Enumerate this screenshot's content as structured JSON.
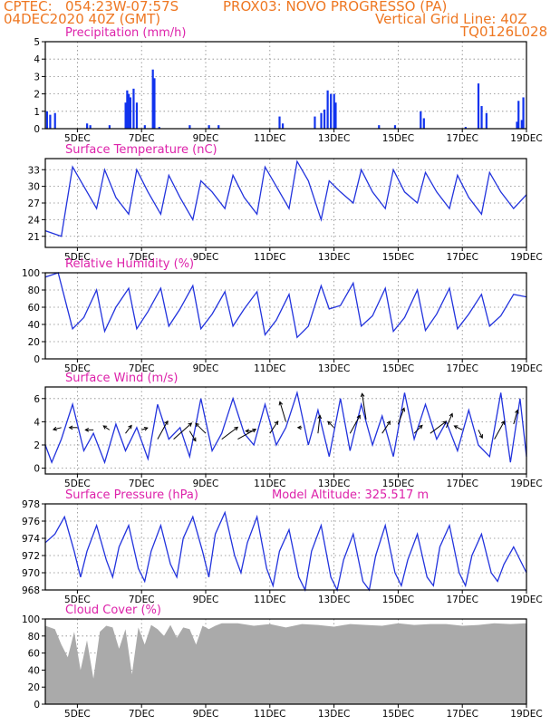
{
  "header": {
    "line1_left": "CPTEC:   054:23W-07:57S",
    "line1_right": "PROX03: NOVO PROGRESSO (PA)",
    "line2_left": "04DEC2020 40Z (GMT)",
    "line2_right": "Vertical Grid Line: 40Z",
    "line3_right": "TQ0126L028"
  },
  "colors": {
    "header": "#ee7722",
    "title": "#dd22aa",
    "line": "#2233dd",
    "bar": "#1133ee",
    "cloud": "#aaaaaa",
    "arrow": "#000000"
  },
  "model_altitude": "Model Altitude: 325.517 m",
  "x_ticks": [
    "5DEC",
    "7DEC",
    "9DEC",
    "11DEC",
    "13DEC",
    "15DEC",
    "17DEC",
    "19DEC"
  ],
  "chart_data": [
    {
      "type": "bar",
      "title": "Precipitation (mm/h)",
      "xlabel": "",
      "ylabel": "",
      "ylim": [
        0,
        5
      ],
      "yticks": [
        0,
        1,
        2,
        3,
        4,
        5
      ],
      "grid": true,
      "x": [
        4.05,
        4.15,
        4.3,
        5.3,
        5.4,
        6.0,
        6.5,
        6.55,
        6.6,
        6.65,
        6.75,
        6.85,
        7.1,
        7.35,
        7.4,
        7.55,
        8.5,
        9.1,
        9.4,
        11.3,
        11.4,
        12.4,
        12.6,
        12.7,
        12.8,
        12.9,
        13.0,
        13.05,
        14.4,
        14.9,
        15.7,
        15.8,
        17.1,
        17.5,
        17.6,
        17.75,
        18.7,
        18.75,
        18.85,
        18.9
      ],
      "values": [
        1.0,
        0.8,
        0.9,
        0.3,
        0.2,
        0.2,
        1.5,
        2.2,
        2.0,
        1.8,
        2.3,
        1.5,
        0.2,
        3.4,
        2.9,
        0.1,
        0.2,
        0.2,
        0.2,
        0.7,
        0.3,
        0.7,
        0.9,
        1.1,
        2.2,
        2.0,
        2.0,
        1.5,
        0.2,
        0.2,
        1.0,
        0.6,
        0.1,
        2.6,
        1.3,
        0.9,
        0.4,
        1.6,
        0.5,
        1.8
      ]
    },
    {
      "type": "line",
      "title": "Surface Temperature (nC)",
      "xlabel": "",
      "ylabel": "",
      "ylim": [
        19,
        35
      ],
      "yticks": [
        21,
        24,
        27,
        30,
        33
      ],
      "grid": true,
      "series": [
        {
          "x": [
            4.0,
            4.5,
            4.85,
            5.2,
            5.6,
            5.85,
            6.2,
            6.6,
            6.85,
            7.2,
            7.6,
            7.85,
            8.2,
            8.6,
            8.85,
            9.2,
            9.6,
            9.85,
            10.2,
            10.6,
            10.85,
            11.2,
            11.6,
            11.85,
            12.2,
            12.6,
            12.85,
            13.2,
            13.6,
            13.85,
            14.2,
            14.6,
            14.85,
            15.2,
            15.6,
            15.85,
            16.2,
            16.6,
            16.85,
            17.2,
            17.6,
            17.85,
            18.2,
            18.6,
            19.0
          ],
          "y": [
            22,
            21,
            33.5,
            30,
            26,
            33,
            28,
            25,
            33,
            29,
            25,
            32,
            28,
            24,
            31,
            29,
            26,
            32,
            28,
            25,
            33.5,
            30,
            26,
            34.5,
            31,
            24,
            31,
            29,
            27,
            33,
            29,
            26,
            33,
            29,
            27,
            32.5,
            29,
            26,
            32,
            28,
            25,
            32.5,
            29,
            26,
            28.5
          ]
        }
      ]
    },
    {
      "type": "line",
      "title": "Relative Humidity (%)",
      "xlabel": "",
      "ylabel": "",
      "ylim": [
        0,
        100
      ],
      "yticks": [
        0,
        20,
        40,
        60,
        80,
        100
      ],
      "grid": true,
      "series": [
        {
          "x": [
            4.0,
            4.4,
            4.85,
            5.2,
            5.6,
            5.85,
            6.2,
            6.6,
            6.85,
            7.2,
            7.6,
            7.85,
            8.2,
            8.6,
            8.85,
            9.2,
            9.6,
            9.85,
            10.2,
            10.6,
            10.85,
            11.2,
            11.6,
            11.85,
            12.2,
            12.6,
            12.85,
            13.2,
            13.6,
            13.85,
            14.2,
            14.6,
            14.85,
            15.2,
            15.6,
            15.85,
            16.2,
            16.6,
            16.85,
            17.2,
            17.6,
            17.85,
            18.2,
            18.6,
            19.0
          ],
          "y": [
            95,
            100,
            35,
            48,
            80,
            32,
            60,
            82,
            35,
            55,
            82,
            38,
            58,
            85,
            35,
            52,
            78,
            38,
            58,
            78,
            28,
            45,
            75,
            25,
            38,
            85,
            58,
            62,
            88,
            38,
            50,
            82,
            32,
            48,
            80,
            33,
            52,
            82,
            35,
            52,
            75,
            38,
            50,
            75,
            72
          ]
        }
      ]
    },
    {
      "type": "line",
      "title": "Surface Wind (m/s)",
      "xlabel": "",
      "ylabel": "",
      "ylim": [
        -0.5,
        7
      ],
      "yticks": [
        0,
        2,
        4,
        6
      ],
      "grid": true,
      "series": [
        {
          "x": [
            4.0,
            4.2,
            4.5,
            4.85,
            5.2,
            5.5,
            5.85,
            6.2,
            6.5,
            6.85,
            7.2,
            7.5,
            7.85,
            8.2,
            8.5,
            8.85,
            9.2,
            9.5,
            9.85,
            10.2,
            10.5,
            10.85,
            11.2,
            11.5,
            11.85,
            12.2,
            12.5,
            12.85,
            13.2,
            13.5,
            13.85,
            14.2,
            14.5,
            14.85,
            15.2,
            15.5,
            15.85,
            16.2,
            16.5,
            16.85,
            17.2,
            17.5,
            17.85,
            18.2,
            18.5,
            18.8,
            19.0
          ],
          "y": [
            2,
            0.5,
            2.5,
            5.5,
            1.5,
            3,
            0.5,
            3.8,
            1.5,
            3.5,
            0.8,
            5.5,
            2.5,
            3.5,
            1,
            6,
            1.5,
            3,
            6,
            3,
            2,
            5.5,
            2,
            3.5,
            6.5,
            2,
            5,
            1,
            6,
            1.5,
            5.5,
            2,
            4.5,
            1,
            6.5,
            2.5,
            5.5,
            2.5,
            4,
            1.5,
            5,
            2,
            1,
            6.5,
            0.5,
            6,
            1
          ]
        }
      ],
      "vectors": [
        {
          "x": 4.5,
          "y": 3.5,
          "u": -0.4,
          "v": -0.1
        },
        {
          "x": 5.0,
          "y": 3.5,
          "u": -0.4,
          "v": 0.0
        },
        {
          "x": 5.5,
          "y": 3.3,
          "u": -0.4,
          "v": 0.0
        },
        {
          "x": 6.0,
          "y": 3.3,
          "u": -0.3,
          "v": 0.2
        },
        {
          "x": 6.5,
          "y": 3.0,
          "u": 0.3,
          "v": 0.4
        },
        {
          "x": 7.0,
          "y": 3.3,
          "u": 0.3,
          "v": 0.1
        },
        {
          "x": 7.5,
          "y": 2.5,
          "u": 0.5,
          "v": 0.9
        },
        {
          "x": 8.0,
          "y": 2.5,
          "u": 0.9,
          "v": 0.8
        },
        {
          "x": 8.5,
          "y": 3.2,
          "u": 0.3,
          "v": -0.5
        },
        {
          "x": 9.0,
          "y": 3.0,
          "u": -0.5,
          "v": 0.5
        },
        {
          "x": 9.5,
          "y": 2.5,
          "u": 0.8,
          "v": 0.6
        },
        {
          "x": 10.0,
          "y": 2.5,
          "u": 0.9,
          "v": 0.5
        },
        {
          "x": 10.5,
          "y": 3.2,
          "u": -0.4,
          "v": 0.0
        },
        {
          "x": 11.0,
          "y": 3.0,
          "u": 0.4,
          "v": 0.6
        },
        {
          "x": 11.5,
          "y": 4.0,
          "u": -0.3,
          "v": 1.0
        },
        {
          "x": 12.0,
          "y": 3.5,
          "u": -0.2,
          "v": 0.0
        },
        {
          "x": 12.5,
          "y": 3.0,
          "u": 0.1,
          "v": 0.9
        },
        {
          "x": 13.0,
          "y": 3.5,
          "u": -0.3,
          "v": 0.3
        },
        {
          "x": 13.5,
          "y": 3.0,
          "u": 0.5,
          "v": 0.9
        },
        {
          "x": 14.0,
          "y": 4.2,
          "u": -0.2,
          "v": 1.3
        },
        {
          "x": 14.5,
          "y": 3.0,
          "u": 0.4,
          "v": 0.6
        },
        {
          "x": 15.0,
          "y": 3.8,
          "u": 0.3,
          "v": 0.8
        },
        {
          "x": 15.5,
          "y": 3.0,
          "u": 0.4,
          "v": 0.4
        },
        {
          "x": 16.0,
          "y": 3.0,
          "u": 0.8,
          "v": 0.6
        },
        {
          "x": 16.5,
          "y": 3.5,
          "u": 0.3,
          "v": 0.7
        },
        {
          "x": 17.0,
          "y": 3.3,
          "u": -0.4,
          "v": 0.2
        },
        {
          "x": 17.5,
          "y": 3.3,
          "u": 0.2,
          "v": -0.4
        },
        {
          "x": 18.0,
          "y": 2.5,
          "u": 0.5,
          "v": 0.9
        },
        {
          "x": 18.6,
          "y": 3.8,
          "u": 0.2,
          "v": 0.7
        }
      ]
    },
    {
      "type": "line",
      "title": "Surface Pressure (hPa)",
      "xlabel": "",
      "ylabel": "",
      "ylim": [
        968,
        978
      ],
      "yticks": [
        968,
        970,
        972,
        974,
        976,
        978
      ],
      "grid": true,
      "series": [
        {
          "x": [
            4.0,
            4.3,
            4.6,
            4.9,
            5.1,
            5.3,
            5.6,
            5.9,
            6.1,
            6.3,
            6.6,
            6.9,
            7.1,
            7.3,
            7.6,
            7.9,
            8.1,
            8.3,
            8.6,
            8.9,
            9.1,
            9.3,
            9.6,
            9.9,
            10.1,
            10.3,
            10.6,
            10.9,
            11.1,
            11.3,
            11.6,
            11.9,
            12.1,
            12.3,
            12.6,
            12.9,
            13.1,
            13.3,
            13.6,
            13.9,
            14.1,
            14.3,
            14.6,
            14.9,
            15.1,
            15.3,
            15.6,
            15.9,
            16.1,
            16.3,
            16.6,
            16.9,
            17.1,
            17.3,
            17.6,
            17.9,
            18.1,
            18.3,
            18.6,
            19.0
          ],
          "y": [
            973.5,
            974.5,
            976.5,
            972.5,
            969.5,
            972.5,
            975.5,
            971.5,
            969.5,
            973,
            975.5,
            970.5,
            969,
            972.5,
            975.5,
            971,
            969.5,
            974,
            976.5,
            972.5,
            969.5,
            974.5,
            977,
            972,
            970,
            973.5,
            976.5,
            970.5,
            968.5,
            972.5,
            975,
            969.5,
            968,
            972.5,
            975.5,
            969.5,
            968,
            971.5,
            974.5,
            969,
            968,
            972,
            975.5,
            970,
            968.5,
            971.5,
            974.5,
            969.5,
            968.5,
            973,
            975.5,
            970,
            968.5,
            972,
            974.5,
            970,
            969,
            971,
            973,
            970
          ]
        }
      ]
    },
    {
      "type": "area",
      "title": "Cloud Cover (%)",
      "xlabel": "",
      "ylabel": "",
      "ylim": [
        0,
        100
      ],
      "yticks": [
        0,
        20,
        40,
        60,
        80,
        100
      ],
      "grid": true,
      "series": [
        {
          "x": [
            4.0,
            4.3,
            4.5,
            4.7,
            4.9,
            5.1,
            5.3,
            5.5,
            5.7,
            5.9,
            6.1,
            6.3,
            6.5,
            6.7,
            6.9,
            7.1,
            7.3,
            7.5,
            7.7,
            7.9,
            8.1,
            8.3,
            8.5,
            8.7,
            8.9,
            9.1,
            9.3,
            9.5,
            10.0,
            10.5,
            11.0,
            11.5,
            12.0,
            12.5,
            13.0,
            13.5,
            14.0,
            14.5,
            15.0,
            15.5,
            16.0,
            16.5,
            17.0,
            17.5,
            18.0,
            18.5,
            19.0
          ],
          "y": [
            92,
            88,
            70,
            55,
            85,
            40,
            75,
            30,
            85,
            92,
            90,
            65,
            88,
            35,
            90,
            70,
            93,
            88,
            80,
            93,
            78,
            90,
            88,
            70,
            92,
            88,
            92,
            95,
            95,
            92,
            94,
            90,
            94,
            93,
            91,
            94,
            93,
            92,
            95,
            93,
            94,
            94,
            92,
            93,
            95,
            94,
            95
          ]
        }
      ]
    }
  ]
}
